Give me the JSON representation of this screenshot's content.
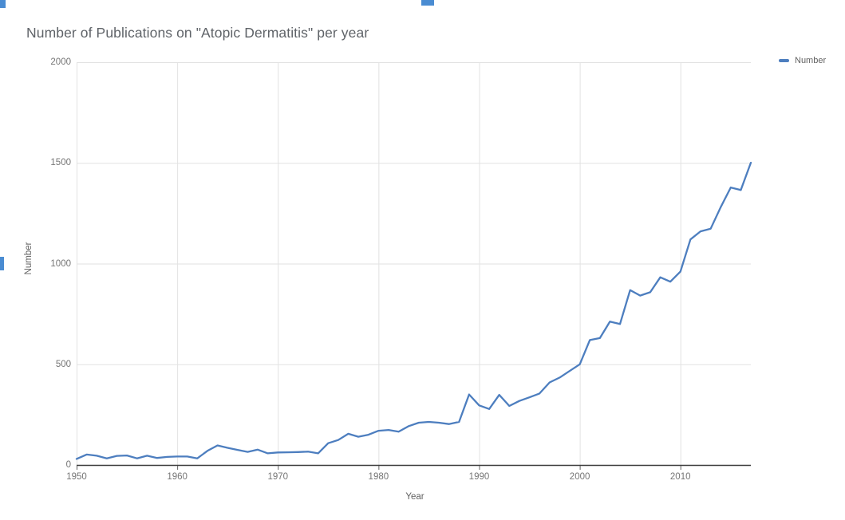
{
  "title": "Number of Publications on \"Atopic Dermatitis\" per year",
  "legend": {
    "label": "Number",
    "marker_color": "#4d7ebf"
  },
  "colors": {
    "line": "#4d7ebf",
    "gridline": "#e2e2e2",
    "axis_line": "#3c3c3c",
    "tick": "#616161",
    "selection_handle": "#4a8cd2"
  },
  "chart_data": {
    "type": "line",
    "title": "Number of Publications on \"Atopic Dermatitis\" per year",
    "xlabel": "Year",
    "ylabel": "Number",
    "legend_position": "right",
    "grid": true,
    "ylim": [
      0,
      2000
    ],
    "yticks": [
      0,
      500,
      1000,
      1500,
      2000
    ],
    "xticks": [
      1950,
      1960,
      1970,
      1980,
      1990,
      2000,
      2010
    ],
    "x": [
      1950,
      1951,
      1952,
      1953,
      1954,
      1955,
      1956,
      1957,
      1958,
      1959,
      1960,
      1961,
      1962,
      1963,
      1964,
      1965,
      1966,
      1967,
      1968,
      1969,
      1970,
      1971,
      1972,
      1973,
      1974,
      1975,
      1976,
      1977,
      1978,
      1979,
      1980,
      1981,
      1982,
      1983,
      1984,
      1985,
      1986,
      1987,
      1988,
      1989,
      1990,
      1991,
      1992,
      1993,
      1994,
      1995,
      1996,
      1997,
      1998,
      1999,
      2000,
      2001,
      2002,
      2003,
      2004,
      2005,
      2006,
      2007,
      2008,
      2009,
      2010,
      2011,
      2012,
      2013,
      2014,
      2015,
      2016,
      2017
    ],
    "series": [
      {
        "name": "Number",
        "color": "#4d7ebf",
        "values": [
          30,
          52,
          46,
          33,
          45,
          47,
          33,
          46,
          35,
          40,
          42,
          42,
          33,
          70,
          97,
          85,
          75,
          65,
          76,
          58,
          62,
          63,
          64,
          66,
          58,
          108,
          124,
          155,
          140,
          150,
          170,
          174,
          165,
          193,
          210,
          214,
          210,
          203,
          214,
          350,
          296,
          278,
          348,
          293,
          318,
          336,
          355,
          410,
          434,
          467,
          500,
          620,
          630,
          712,
          700,
          868,
          841,
          858,
          932,
          910,
          960,
          1120,
          1160,
          1173,
          1280,
          1378,
          1365,
          1501
        ]
      }
    ]
  }
}
